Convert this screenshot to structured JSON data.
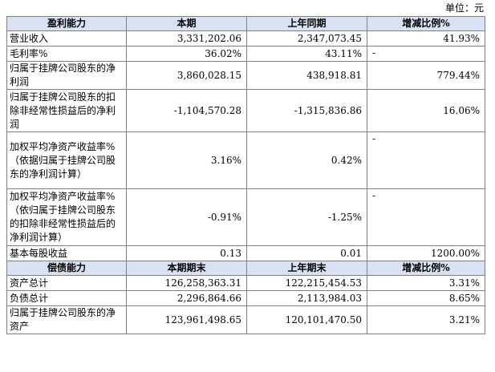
{
  "unit_label": "单位：元",
  "profit": {
    "header": [
      "盈利能力",
      "本期",
      "上年同期",
      "增减比例%"
    ],
    "rows": [
      {
        "label": "营业收入",
        "current": "3,331,202.06",
        "previous": "2,347,073.45",
        "change": "41.93%"
      },
      {
        "label": "毛利率%",
        "current": "36.02%",
        "previous": "43.11%",
        "change": "-"
      },
      {
        "label": "归属于挂牌公司股东的净利润",
        "current": "3,860,028.15",
        "previous": "438,918.81",
        "change": "779.44%"
      },
      {
        "label": "归属于挂牌公司股东的扣除非经常性损益后的净利润",
        "current": "-1,104,570.28",
        "previous": "-1,315,836.86",
        "change": "16.06%"
      },
      {
        "label": "加权平均净资产收益率%（依据归属于挂牌公司股东的净利润计算）",
        "current": "3.16%",
        "previous": "0.42%",
        "change": "-"
      },
      {
        "label": "加权平均净资产收益率%（依归属于挂牌公司股东的扣除非经常性损益后的净利润计算）",
        "current": "-0.91%",
        "previous": "-1.25%",
        "change": "-"
      },
      {
        "label": "基本每股收益",
        "current": "0.13",
        "previous": "0.01",
        "change": "1200.00%"
      }
    ]
  },
  "solvency": {
    "header": [
      "偿债能力",
      "本期期末",
      "上年期末",
      "增减比例%"
    ],
    "rows": [
      {
        "label": "资产总计",
        "current": "126,258,363.31",
        "previous": "122,215,454.53",
        "change": "3.31%"
      },
      {
        "label": "负债总计",
        "current": "2,296,864.66",
        "previous": "2,113,984.03",
        "change": "8.65%"
      },
      {
        "label": "归属于挂牌公司股东的净资产",
        "current": "123,961,498.65",
        "previous": "120,101,470.50",
        "change": "3.21%"
      }
    ]
  }
}
